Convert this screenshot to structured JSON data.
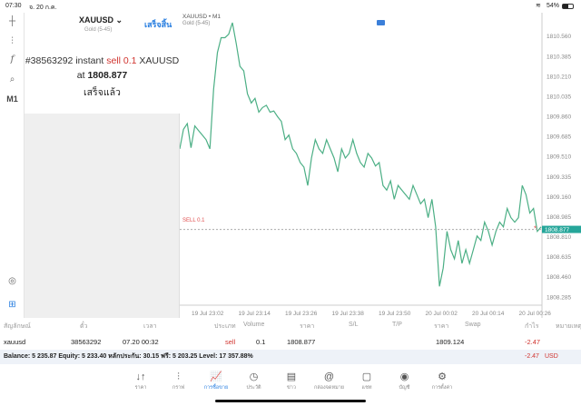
{
  "status": {
    "time": "07:30",
    "date": "จ. 20 ก.ค.",
    "battery": "54%"
  },
  "toolbar": {
    "timeframe": "M1"
  },
  "panel": {
    "symbol": "XAUUSD",
    "symbol_desc": "Gold (5-45)",
    "done_button": "เสร็จสิ้น",
    "msg_prefix": "#38563292 instant",
    "msg_side": "sell 0.1",
    "msg_symbol": "XAUUSD",
    "msg_at": "at",
    "msg_price": "1808.877",
    "msg_status": "เสร็จแล้ว"
  },
  "chart": {
    "title": "XAUUSD • M1",
    "subtitle": "Gold (5-45)",
    "sell_label": "SELL 0.1",
    "current_price": "1808.877"
  },
  "chart_data": {
    "type": "line",
    "ylim": [
      1808.2,
      1810.72
    ],
    "yticks": [
      "1810.560",
      "1810.385",
      "1810.210",
      "1810.035",
      "1809.860",
      "1809.685",
      "1809.510",
      "1809.335",
      "1809.160",
      "1808.985",
      "1808.810",
      "1808.635",
      "1808.460",
      "1808.285"
    ],
    "xticks": [
      "19 Jul 23:02",
      "19 Jul 23:14",
      "19 Jul 23:26",
      "19 Jul 23:38",
      "19 Jul 23:50",
      "20 Jul 00:02",
      "20 Jul 00:14",
      "20 Jul 00:26"
    ],
    "sell_level": 1808.877,
    "values": [
      1809.58,
      1809.75,
      1809.8,
      1809.59,
      1809.78,
      1809.74,
      1809.7,
      1809.66,
      1809.58,
      1810.1,
      1810.42,
      1810.55,
      1810.55,
      1810.58,
      1810.68,
      1810.5,
      1810.3,
      1810.26,
      1810.06,
      1809.98,
      1810.02,
      1809.9,
      1809.94,
      1809.96,
      1809.9,
      1809.91,
      1809.86,
      1809.82,
      1809.66,
      1809.7,
      1809.58,
      1809.54,
      1809.46,
      1809.42,
      1809.26,
      1809.5,
      1809.66,
      1809.58,
      1809.54,
      1809.66,
      1809.58,
      1809.5,
      1809.38,
      1809.58,
      1809.5,
      1809.54,
      1809.66,
      1809.54,
      1809.46,
      1809.42,
      1809.54,
      1809.5,
      1809.43,
      1809.46,
      1809.26,
      1809.22,
      1809.3,
      1809.14,
      1809.26,
      1809.22,
      1809.18,
      1809.14,
      1809.26,
      1809.18,
      1809.1,
      1809.14,
      1808.98,
      1809.14,
      1808.9,
      1808.38,
      1808.54,
      1808.86,
      1808.7,
      1808.62,
      1808.78,
      1808.58,
      1808.7,
      1808.58,
      1808.7,
      1808.82,
      1808.78,
      1808.94,
      1808.86,
      1808.74,
      1808.86,
      1808.94,
      1808.9,
      1809.06,
      1808.98,
      1808.94,
      1808.98,
      1809.26,
      1809.18,
      1809.02,
      1809.06,
      1808.86,
      1808.9
    ],
    "line_color": "#4caf85",
    "sell_color": "#e05050"
  },
  "table": {
    "headers": [
      "สัญลักษณ์",
      "ตั๋ว",
      "เวลา",
      "ประเภท",
      "Volume",
      "ราคา",
      "S/L",
      "T/P",
      "ราคา",
      "Swap",
      "กำไร",
      "หมายเหตุ"
    ],
    "rows": [
      {
        "symbol": "xauusd",
        "ticket": "38563292",
        "time": "07.20 00:32",
        "type": "sell",
        "volume": "0.1",
        "price": "1808.877",
        "sl": "",
        "tp": "",
        "cur_price": "1809.124",
        "swap": "",
        "profit": "-2.47",
        "comment": ""
      }
    ]
  },
  "balance": {
    "text": "Balance: 5 235.87 Equity: 5 233.40 หลักประกัน: 30.15 ฟรี: 5 203.25 Level: 17 357.88%",
    "profit": "-2.47",
    "currency": "USD"
  },
  "nav": [
    {
      "label": "ราคา",
      "icon": "↓↑"
    },
    {
      "label": "กราฟ",
      "icon": "⫶"
    },
    {
      "label": "การซื้อขาย",
      "icon": "📈"
    },
    {
      "label": "ประวัติ",
      "icon": "◷"
    },
    {
      "label": "ข่าว",
      "icon": "▤"
    },
    {
      "label": "กล่องจดหมาย",
      "icon": "@"
    },
    {
      "label": "แชท",
      "icon": "▢"
    },
    {
      "label": "บัญชี",
      "icon": "◉"
    },
    {
      "label": "การตั้งค่า",
      "icon": "⚙"
    }
  ]
}
